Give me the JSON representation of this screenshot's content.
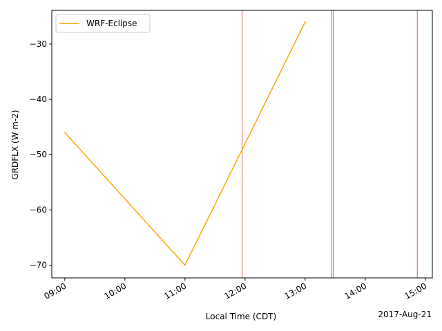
{
  "chart_data": {
    "type": "line",
    "xlabel": "Local Time (CDT)",
    "ylabel": "GRDFLX (W m-2)",
    "date_label": "2017-Aug-21",
    "x_ticks": [
      "09:00",
      "10:00",
      "11:00",
      "12:00",
      "13:00",
      "14:00",
      "15:00"
    ],
    "y_ticks": [
      -30,
      -40,
      -50,
      -60,
      -70
    ],
    "xlim": [
      "08:47",
      "15:07"
    ],
    "ylim": [
      -72.3,
      -23.9
    ],
    "legend": {
      "position": "top-left"
    },
    "series": [
      {
        "name": "WRF-Eclipse",
        "color": "#ffa500",
        "x": [
          "09:00",
          "11:00",
          "13:00"
        ],
        "y": [
          -46.0,
          -70.0,
          -26.0
        ]
      }
    ],
    "vlines": {
      "color": "#e8584c",
      "x": [
        "11:57",
        "13:26",
        "13:28",
        "14:52"
      ]
    }
  }
}
